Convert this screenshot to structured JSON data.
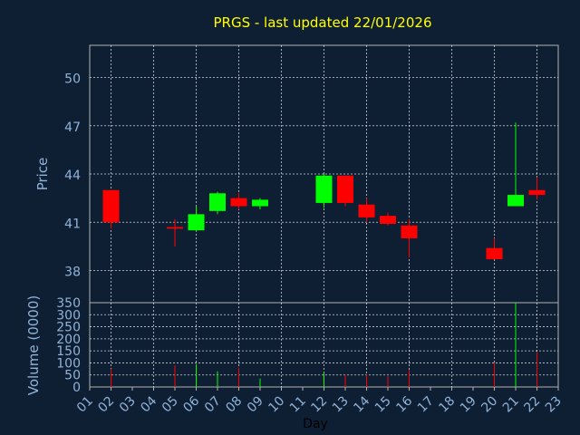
{
  "title": "PRGS - last updated 22/01/2026",
  "colors": {
    "background": "#0f1f33",
    "title": "#ffff00",
    "axis_text": "#8fb3d9",
    "grid": "#ffffff",
    "up": "#00ff00",
    "down": "#ff0000",
    "frame": "#b0b0b0"
  },
  "chart_data": [
    {
      "type": "candlestick",
      "ylabel": "Price",
      "ylim": [
        36,
        52
      ],
      "yticks": [
        38,
        41,
        44,
        47,
        50
      ],
      "xlim": [
        1,
        23
      ],
      "grid": true,
      "candles": [
        {
          "day": 2,
          "open": 43.0,
          "high": 43.0,
          "low": 40.6,
          "close": 41.0
        },
        {
          "day": 5,
          "open": 40.7,
          "high": 41.2,
          "low": 39.5,
          "close": 40.6
        },
        {
          "day": 6,
          "open": 40.5,
          "high": 42.0,
          "low": 40.4,
          "close": 41.5
        },
        {
          "day": 7,
          "open": 41.7,
          "high": 42.9,
          "low": 41.5,
          "close": 42.8
        },
        {
          "day": 8,
          "open": 42.5,
          "high": 42.8,
          "low": 41.8,
          "close": 42.0
        },
        {
          "day": 9,
          "open": 42.0,
          "high": 42.5,
          "low": 41.8,
          "close": 42.4
        },
        {
          "day": 12,
          "open": 42.2,
          "high": 44.0,
          "low": 41.9,
          "close": 43.9
        },
        {
          "day": 13,
          "open": 43.9,
          "high": 43.9,
          "low": 42.0,
          "close": 42.2
        },
        {
          "day": 14,
          "open": 42.1,
          "high": 42.5,
          "low": 41.0,
          "close": 41.3
        },
        {
          "day": 15,
          "open": 41.4,
          "high": 41.6,
          "low": 40.8,
          "close": 40.9
        },
        {
          "day": 16,
          "open": 40.8,
          "high": 41.2,
          "low": 38.8,
          "close": 40.0
        },
        {
          "day": 20,
          "open": 39.4,
          "high": 40.0,
          "low": 38.7,
          "close": 38.7
        },
        {
          "day": 21,
          "open": 42.0,
          "high": 47.2,
          "low": 42.0,
          "close": 42.7
        },
        {
          "day": 22,
          "open": 43.0,
          "high": 43.8,
          "low": 42.4,
          "close": 42.7
        }
      ]
    },
    {
      "type": "bar",
      "ylabel": "Volume (0000)",
      "ylim": [
        0,
        350
      ],
      "yticks": [
        0,
        50,
        100,
        150,
        200,
        250,
        300,
        350
      ],
      "xlabel": "Day",
      "xticks": [
        "01",
        "02",
        "03",
        "04",
        "05",
        "06",
        "07",
        "08",
        "09",
        "10",
        "11",
        "12",
        "13",
        "14",
        "15",
        "16",
        "17",
        "18",
        "19",
        "20",
        "21",
        "22",
        "23"
      ],
      "grid": true,
      "bars": [
        {
          "day": 2,
          "value": 75,
          "color": "down"
        },
        {
          "day": 5,
          "value": 90,
          "color": "down"
        },
        {
          "day": 6,
          "value": 95,
          "color": "up"
        },
        {
          "day": 7,
          "value": 65,
          "color": "up"
        },
        {
          "day": 8,
          "value": 80,
          "color": "down"
        },
        {
          "day": 9,
          "value": 35,
          "color": "up"
        },
        {
          "day": 12,
          "value": 60,
          "color": "up"
        },
        {
          "day": 13,
          "value": 50,
          "color": "down"
        },
        {
          "day": 14,
          "value": 50,
          "color": "down"
        },
        {
          "day": 15,
          "value": 45,
          "color": "down"
        },
        {
          "day": 16,
          "value": 70,
          "color": "down"
        },
        {
          "day": 20,
          "value": 100,
          "color": "down"
        },
        {
          "day": 21,
          "value": 350,
          "color": "up"
        },
        {
          "day": 22,
          "value": 145,
          "color": "down"
        }
      ]
    }
  ]
}
